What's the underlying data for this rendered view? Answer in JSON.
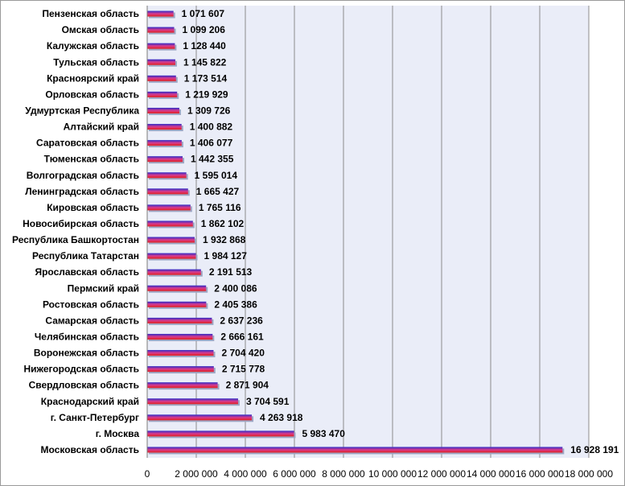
{
  "chart_data": {
    "type": "bar",
    "orientation": "horizontal",
    "title": "",
    "xlabel": "",
    "ylabel": "",
    "xlim": [
      0,
      18000000
    ],
    "grid": true,
    "legend": "none",
    "categories": [
      "Пензенская область",
      "Омская область",
      "Калужская область",
      "Тульская область",
      "Красноярский край",
      "Орловская область",
      "Удмуртская Республика",
      "Алтайский край",
      "Саратовская область",
      "Тюменская область",
      "Волгоградская область",
      "Ленинградская область",
      "Кировская область",
      "Новосибирская область",
      "Республика Башкортостан",
      "Республика Татарстан",
      "Ярославская область",
      "Пермский край",
      "Ростовская область",
      "Самарская область",
      "Челябинская область",
      "Воронежская область",
      "Нижегородская область",
      "Свердловская область",
      "Краснодарский край",
      "г. Санкт-Петербург",
      "г. Москва",
      "Московская область"
    ],
    "values": [
      1071607,
      1099206,
      1128440,
      1145822,
      1173514,
      1219929,
      1309726,
      1400882,
      1406077,
      1442355,
      1595014,
      1665427,
      1765116,
      1862102,
      1932868,
      1984127,
      2191513,
      2400086,
      2405386,
      2637236,
      2666161,
      2704420,
      2715778,
      2871904,
      3704591,
      4263918,
      5983470,
      16928191
    ],
    "value_labels": [
      "1 071 607",
      "1 099 206",
      "1 128 440",
      "1 145 822",
      "1 173 514",
      "1 219 929",
      "1 309 726",
      "1 400 882",
      "1 406 077",
      "1 442 355",
      "1 595 014",
      "1 665 427",
      "1 765 116",
      "1 862 102",
      "1 932 868",
      "1 984 127",
      "2 191 513",
      "2 400 086",
      "2 405 386",
      "2 637 236",
      "2 666 161",
      "2 704 420",
      "2 715 778",
      "2 871 904",
      "3 704 591",
      "4 263 918",
      "5 983 470",
      "16 928 191"
    ],
    "ticks": [
      0,
      2000000,
      4000000,
      6000000,
      8000000,
      10000000,
      12000000,
      14000000,
      16000000,
      18000000
    ],
    "tick_labels": [
      "0",
      "2 000 000",
      "4 000 000",
      "6 000 000",
      "8 000 000",
      "10 000 000",
      "12 000 000",
      "14 000 000",
      "16 000 000",
      "18 000 000"
    ],
    "colors": {
      "plot_area": "#eaedf8",
      "gridline": "#8c8c8c",
      "bar_top": "#2b2bc8",
      "bar_mid": "#d83a8e",
      "bar_bottom": "#e0201e",
      "bar_shadow": "#9da6c4"
    }
  }
}
